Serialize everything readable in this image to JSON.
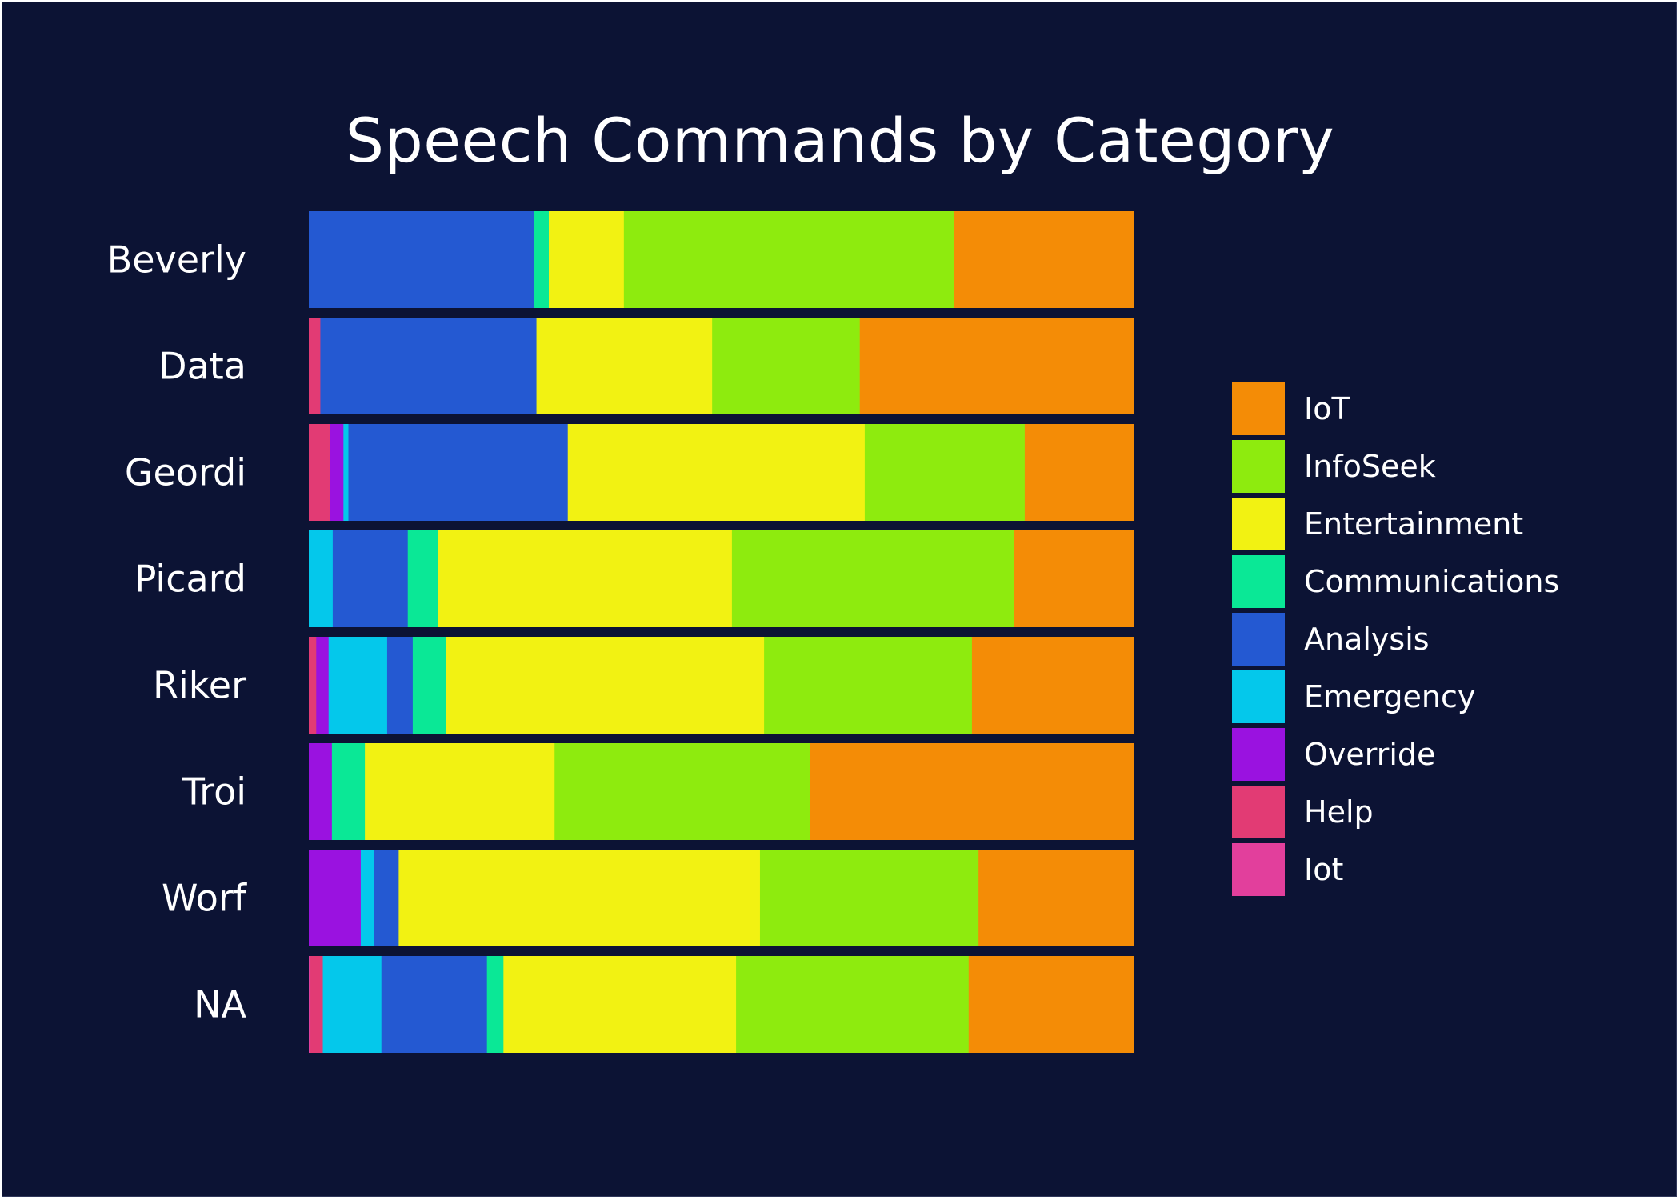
{
  "chart_data": {
    "type": "bar",
    "orientation": "horizontal",
    "stacked": "percent",
    "title": "Speech Commands by Category",
    "xlabel": "",
    "ylabel": "",
    "categories": [
      "NA",
      "Worf",
      "Troi",
      "Riker",
      "Picard",
      "Geordi",
      "Data",
      "Beverly"
    ],
    "series": [
      {
        "name": "Iot",
        "color": "#e23f9c",
        "values": [
          0.2,
          0,
          0,
          0,
          0,
          0,
          0,
          0
        ]
      },
      {
        "name": "Help",
        "color": "#e23b74",
        "values": [
          1.5,
          0,
          0,
          0.9,
          0,
          2.6,
          1.4,
          0
        ]
      },
      {
        "name": "Override",
        "color": "#9a12e0",
        "values": [
          0,
          6.3,
          2.8,
          1.5,
          0,
          1.6,
          0,
          0
        ]
      },
      {
        "name": "Emergency",
        "color": "#04c8eb",
        "values": [
          7.1,
          1.6,
          0,
          7.1,
          2.9,
          0.6,
          0,
          0
        ]
      },
      {
        "name": "Analysis",
        "color": "#2459d2",
        "values": [
          12.8,
          3.0,
          0,
          3.1,
          9.1,
          26.6,
          26.2,
          27.3
        ]
      },
      {
        "name": "Communications",
        "color": "#0ae896",
        "values": [
          2.0,
          0,
          4.0,
          4.0,
          3.7,
          0,
          0,
          1.8
        ]
      },
      {
        "name": "Entertainment",
        "color": "#f2f212",
        "values": [
          28.2,
          43.8,
          23.0,
          38.6,
          35.6,
          36.0,
          21.3,
          9.1
        ]
      },
      {
        "name": "InfoSeek",
        "color": "#8eeb0e",
        "values": [
          28.2,
          26.5,
          31.0,
          25.2,
          34.2,
          19.4,
          17.9,
          40.0
        ]
      },
      {
        "name": "IoT",
        "color": "#f48c06",
        "values": [
          20.0,
          18.8,
          39.2,
          19.6,
          14.5,
          13.2,
          33.2,
          21.8
        ]
      }
    ],
    "xlim": [
      0,
      100
    ],
    "legend_order": [
      "IoT",
      "InfoSeek",
      "Entertainment",
      "Communications",
      "Analysis",
      "Emergency",
      "Override",
      "Help",
      "Iot"
    ],
    "legend_position": "right",
    "grid": false,
    "background": "#0c1334"
  }
}
